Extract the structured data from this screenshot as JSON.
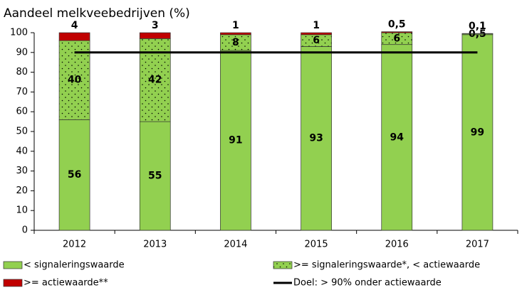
{
  "chart_data": {
    "type": "stacked_bar",
    "title": "Aandeel melkveebedrijven (%)",
    "categories": [
      "2012",
      "2013",
      "2014",
      "2015",
      "2016",
      "2017"
    ],
    "series": [
      {
        "name": "< signaleringswaarde",
        "color": "#92d050",
        "values": [
          56,
          55,
          91,
          93,
          94,
          99
        ],
        "value_labels": [
          "56",
          "55",
          "91",
          "93",
          "94",
          "99"
        ]
      },
      {
        "name": ">= signaleringswaarde*, < actiewaarde",
        "color": "#92d050",
        "pattern": "dots",
        "values": [
          40,
          42,
          8,
          6,
          6,
          0.5
        ],
        "value_labels": [
          "40",
          "42",
          "8",
          "6",
          "6",
          "0,5"
        ]
      },
      {
        "name": ">= actiewaarde**",
        "color": "#c00000",
        "values": [
          4,
          3,
          1,
          1,
          0.5,
          0.1
        ],
        "value_labels": [
          "4",
          "3",
          "1",
          "1",
          "0,5",
          "0,1"
        ]
      }
    ],
    "goal": {
      "name": "Doel: > 90% onder actiewaarde",
      "value": 90,
      "color": "#000000"
    },
    "ylim": [
      0,
      100
    ],
    "yticks": [
      0,
      10,
      20,
      30,
      40,
      50,
      60,
      70,
      80,
      90,
      100
    ],
    "grid": false
  }
}
